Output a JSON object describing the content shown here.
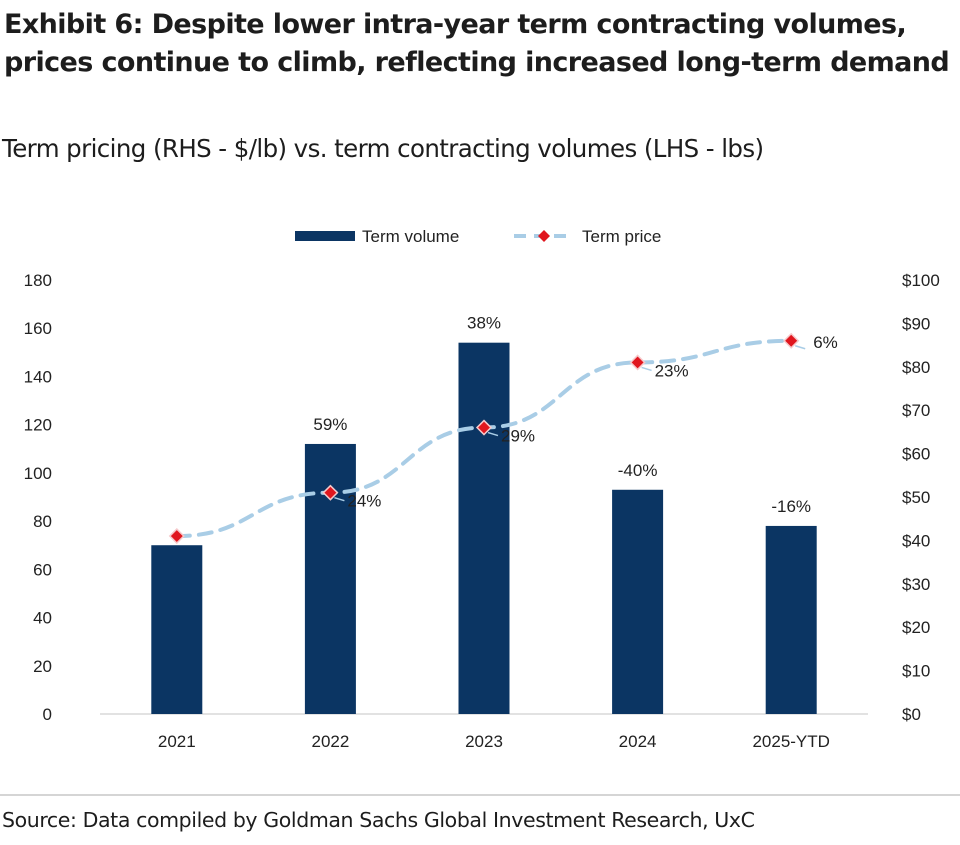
{
  "title": "Exhibit 6: Despite lower intra-year term contracting volumes, prices continue to climb, reflecting increased long-term demand",
  "subtitle": "Term pricing (RHS - $/lb) vs. term contracting volumes (LHS - lbs)",
  "source": "Source: Data compiled by Goldman Sachs Global Investment Research, UxC",
  "colors": {
    "bar": "#0b3563",
    "line": "#a9cde6",
    "marker": "#e0161e"
  },
  "chart_data": {
    "type": "bar",
    "title": "Exhibit 6: Despite lower intra-year term contracting volumes, prices continue to climb, reflecting increased long-term demand",
    "subtitle": "Term pricing (RHS - $/lb) vs. term contracting volumes (LHS - lbs)",
    "categories": [
      "2021",
      "2022",
      "2023",
      "2024",
      "2025-YTD"
    ],
    "series": [
      {
        "name": "Term volume",
        "type": "bar",
        "axis": "left",
        "values": [
          70,
          112,
          154,
          93,
          78
        ],
        "labels": [
          "",
          "59%",
          "38%",
          "-40%",
          "-16%"
        ]
      },
      {
        "name": "Term price",
        "type": "line",
        "axis": "right",
        "values": [
          41,
          51,
          66,
          81,
          86
        ],
        "labels": [
          "",
          "24%",
          "29%",
          "23%",
          "6%"
        ]
      }
    ],
    "left_axis": {
      "label": "lbs",
      "ylim": [
        0,
        180
      ],
      "ticks": [
        "0",
        "20",
        "40",
        "60",
        "80",
        "100",
        "120",
        "140",
        "160",
        "180"
      ]
    },
    "right_axis": {
      "label": "$/lb",
      "ylim": [
        0,
        100
      ],
      "ticks": [
        "$0",
        "$10",
        "$20",
        "$30",
        "$40",
        "$50",
        "$60",
        "$70",
        "$80",
        "$90",
        "$100"
      ]
    },
    "legend": {
      "position": "top-center",
      "entries": [
        "Term volume",
        "Term price"
      ]
    },
    "grid": false
  }
}
